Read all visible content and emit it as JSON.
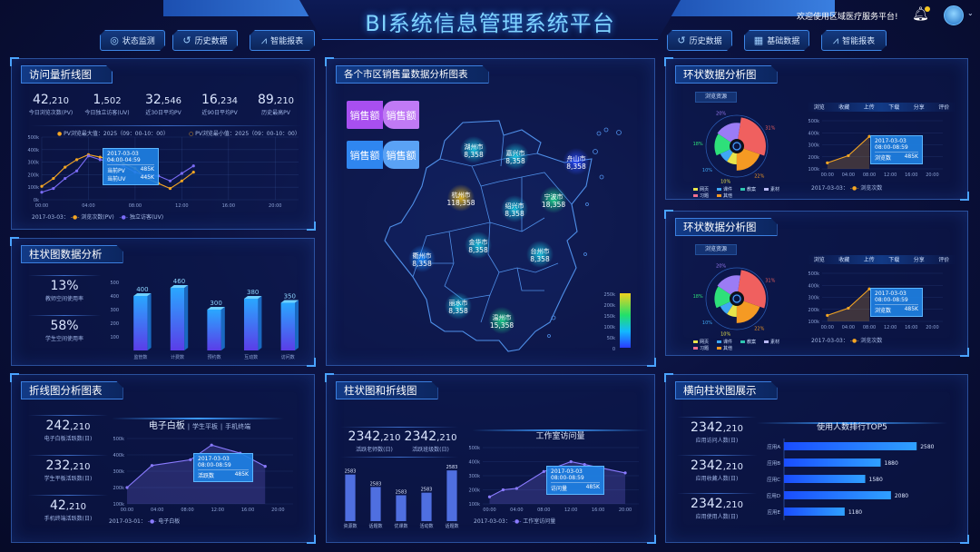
{
  "header": {
    "title": "BI系统信息管理系统平台",
    "welcome": "欢迎使用区域医疗服务平台!",
    "nav_left": [
      {
        "label": "状态监测",
        "icon": "radar-icon"
      },
      {
        "label": "历史数据",
        "icon": "history-icon"
      },
      {
        "label": "智能报表",
        "icon": "report-chart-icon"
      }
    ],
    "nav_right": [
      {
        "label": "历史数据",
        "icon": "history-icon"
      },
      {
        "label": "基础数据",
        "icon": "grid-icon"
      },
      {
        "label": "智能报表",
        "icon": "report-chart-icon"
      }
    ]
  },
  "colors": {
    "accent": "#4aa3ff",
    "title": "#7fd2ff",
    "pv": "#f5a623",
    "uv": "#7b6cf6",
    "bar_top": "#29a7ff",
    "bar_bottom": "#5b3de8",
    "hbar": "#1e6cff"
  },
  "visits": {
    "title": "访问量折线图",
    "stats": [
      {
        "value": "42",
        "small": ",210",
        "label": "今日浏览次数(PV)"
      },
      {
        "value": "1",
        "small": ",502",
        "label": "今日独立访客(UV)"
      },
      {
        "value": "32",
        "small": ",546",
        "label": "近30日平均PV"
      },
      {
        "value": "16",
        "small": ",234",
        "label": "近90日平均PV"
      },
      {
        "value": "89",
        "small": ",210",
        "label": "历史最高PV"
      }
    ],
    "legend_max": "PV浏览最大值：2025（09：00-10：00）",
    "legend_min": "PV浏览最小值：2025（09：00-10：00）",
    "tooltip": {
      "header": "2017-03-03 04:00-04:59",
      "rows": [
        {
          "k": "当前PV",
          "v": "485K"
        },
        {
          "k": "当前UV",
          "v": "445K"
        }
      ]
    },
    "footer_date": "2017-03-03：",
    "footer_series": [
      "浏览次数(PV)",
      "独立访客(UV)"
    ]
  },
  "barpanel": {
    "title": "柱状图数据分析",
    "stats": [
      {
        "value": "13%",
        "label": "教师空间使用率"
      },
      {
        "value": "58%",
        "label": "学生空间使用率"
      }
    ]
  },
  "map": {
    "title": "各个市区销售量数据分析图表",
    "buttons": [
      [
        "销售额",
        "销售额"
      ],
      [
        "销售额",
        "销售额"
      ]
    ],
    "cities": [
      {
        "name": "湖州市",
        "value": "8,358",
        "color": "#19c6e0"
      },
      {
        "name": "嘉兴市",
        "value": "8,358",
        "color": "#19c6e0"
      },
      {
        "name": "舟山市",
        "value": "8,358",
        "color": "#2a4cff"
      },
      {
        "name": "杭州市",
        "value": "118,358",
        "color": "#e6b81e"
      },
      {
        "name": "绍兴市",
        "value": "8,358",
        "color": "#19c6e0"
      },
      {
        "name": "宁波市",
        "value": "18,358",
        "color": "#1ed28a"
      },
      {
        "name": "金华市",
        "value": "8,358",
        "color": "#19c6e0"
      },
      {
        "name": "台州市",
        "value": "8,358",
        "color": "#19c6e0"
      },
      {
        "name": "衢州市",
        "value": "8,358",
        "color": "#1a8cff"
      },
      {
        "name": "丽水市",
        "value": "8,358",
        "color": "#19c6e0"
      },
      {
        "name": "温州市",
        "value": "15,358",
        "color": "#1ed28a"
      }
    ],
    "scale_labels": [
      "250k",
      "200k",
      "150k",
      "100k",
      "50k",
      "0"
    ]
  },
  "ring1": {
    "title": "环状数据分析图",
    "tag": "浏览资源",
    "tabs": [
      "浏览",
      "收藏",
      "上传",
      "下载",
      "分享",
      "评价"
    ],
    "tooltip": {
      "header": "2017-03-03 08:00-08:59",
      "rows": [
        {
          "k": "浏览数",
          "v": "485K"
        }
      ]
    },
    "footer_date": "2017-03-03：",
    "footer_series": "浏览次数"
  },
  "ring2": {
    "title": "环状数据分析图",
    "tag": "浏览资源",
    "tabs": [
      "浏览",
      "收藏",
      "上传",
      "下载",
      "分享",
      "评价"
    ],
    "tooltip": {
      "header": "2017-03-03 08:00-08:59",
      "rows": [
        {
          "k": "浏览数",
          "v": "485K"
        }
      ]
    },
    "footer_date": "2017-03-03：",
    "footer_series": "浏览次数"
  },
  "linepanel": {
    "title": "折线图分析图表",
    "stats": [
      {
        "value": "242",
        "small": ",210",
        "label": "电子白板活跃数(日)"
      },
      {
        "value": "232",
        "small": ",210",
        "label": "学生平板活跃数(日)"
      },
      {
        "value": "42",
        "small": ",210",
        "label": "手机终端活跃数(日)"
      }
    ],
    "tabs": [
      "电子白板",
      "学生平板",
      "手机终端"
    ],
    "tooltip": {
      "header": "2017-03-03 08:00-08:59",
      "rows": [
        {
          "k": "活跃数",
          "v": "485K"
        }
      ]
    },
    "footer_date": "2017-03-01：",
    "footer_series": "电子白板"
  },
  "combo": {
    "title": "柱状图和折线图",
    "stats": [
      {
        "value": "2342",
        "small": ",210",
        "label": "活跃老师数(日)"
      },
      {
        "value": "2342",
        "small": ",210",
        "label": "活跃班级数(日)"
      }
    ],
    "line_title": "工作室访问量",
    "tooltip": {
      "header": "2017-03-03 08:00-08:59",
      "rows": [
        {
          "k": "访问量",
          "v": "485K"
        }
      ]
    },
    "footer_date": "2017-03-03：",
    "footer_series": "工作室访问量"
  },
  "hbarpanel": {
    "title": "横向柱状图展示",
    "stats": [
      {
        "value": "2342",
        "small": ",210",
        "label": "应用访问人数(日)"
      },
      {
        "value": "2342",
        "small": ",210",
        "label": "应用收藏人数(日)"
      },
      {
        "value": "2342",
        "small": ",210",
        "label": "应用使用人数(日)"
      }
    ]
  },
  "chart_data": [
    {
      "type": "line",
      "x": [
        0,
        1,
        2,
        3,
        4,
        5,
        6,
        7,
        8,
        9,
        10,
        11,
        12,
        13
      ],
      "xlim": [
        0,
        22
      ],
      "xticks": [
        0,
        4,
        8,
        12,
        16,
        20
      ],
      "xtick_labels": [
        "00:00",
        "04:00",
        "08:00",
        "12:00",
        "16:00",
        "20:00"
      ],
      "ylim": [
        0,
        500
      ],
      "ytick_labels": [
        "0k",
        "100k",
        "200k",
        "300k",
        "400k",
        "500k"
      ],
      "grid": true,
      "series": [
        {
          "name": "浏览次数(PV)",
          "color": "#f5a623",
          "values": [
            107,
            170,
            260,
            320,
            360,
            340,
            320,
            290,
            250,
            170,
            130,
            90,
            150,
            220
          ]
        },
        {
          "name": "独立访客(UV)",
          "color": "#7b6cf6",
          "values": [
            60,
            90,
            170,
            230,
            350,
            320,
            300,
            270,
            220,
            190,
            190,
            150,
            210,
            270
          ]
        }
      ]
    },
    {
      "type": "bar",
      "categories": [
        "监管数",
        "计费数",
        "预约数",
        "互动数",
        "访问数"
      ],
      "values": [
        400,
        460,
        300,
        380,
        350
      ],
      "ylim": [
        0,
        500
      ],
      "ytick_labels": [
        "100",
        "200",
        "300",
        "400",
        "500"
      ]
    },
    {
      "type": "pie",
      "variant": "rose",
      "label": "浏览资源",
      "slices": [
        {
          "name": "习题",
          "value": 31,
          "color": "#f0605f"
        },
        {
          "name": "其他",
          "value": 22,
          "color": "#f59a23"
        },
        {
          "name": "网页",
          "value": 10,
          "color": "#e8e54a"
        },
        {
          "name": "课件",
          "value": 10,
          "color": "#3fa8f5"
        },
        {
          "name": "教案",
          "value": 18,
          "color": "#2ee07a"
        },
        {
          "name": "素材",
          "value": 20,
          "color": "#9b7cf5"
        }
      ],
      "pct_labels": [
        "31%",
        "22%",
        "10%",
        "10%",
        "18%",
        "20%"
      ],
      "legend": [
        "网页",
        "课件",
        "教案",
        "素材",
        "习题",
        "其他"
      ]
    },
    {
      "type": "area",
      "x": [
        0,
        4,
        8
      ],
      "xlim": [
        -1,
        22
      ],
      "xticks": [
        0,
        4,
        8,
        12,
        16,
        20
      ],
      "xtick_labels": [
        "00:00",
        "04:00",
        "08:00",
        "12:00",
        "16:00",
        "20:00"
      ],
      "ylim": [
        100,
        500
      ],
      "ytick_labels": [
        "100k",
        "200k",
        "300k",
        "400k",
        "500k"
      ],
      "series": [
        {
          "name": "浏览次数",
          "color": "#f5a623",
          "values": [
            150,
            210,
            370
          ]
        }
      ]
    },
    {
      "type": "pie",
      "variant": "rose",
      "label": "浏览资源",
      "slices": [
        {
          "name": "习题",
          "value": 31,
          "color": "#f0605f"
        },
        {
          "name": "其他",
          "value": 22,
          "color": "#f59a23"
        },
        {
          "name": "网页",
          "value": 10,
          "color": "#e8e54a"
        },
        {
          "name": "课件",
          "value": 10,
          "color": "#3fa8f5"
        },
        {
          "name": "教案",
          "value": 18,
          "color": "#2ee07a"
        },
        {
          "name": "素材",
          "value": 20,
          "color": "#9b7cf5"
        }
      ],
      "pct_labels": [
        "31%",
        "22%",
        "10%",
        "10%",
        "18%",
        "20%"
      ],
      "legend": [
        "网页",
        "课件",
        "教案",
        "素材",
        "习题",
        "其他"
      ]
    },
    {
      "type": "area",
      "x": [
        0,
        4,
        8
      ],
      "xlim": [
        -1,
        22
      ],
      "xticks": [
        0,
        4,
        8,
        12,
        16,
        20
      ],
      "xtick_labels": [
        "00:00",
        "04:00",
        "08:00",
        "12:00",
        "16:00",
        "20:00"
      ],
      "ylim": [
        100,
        500
      ],
      "ytick_labels": [
        "100k",
        "200k",
        "300k",
        "400k",
        "500k"
      ],
      "series": [
        {
          "name": "浏览次数",
          "color": "#f5a623",
          "values": [
            150,
            210,
            370
          ]
        }
      ]
    },
    {
      "type": "area",
      "x": [
        0,
        3.3,
        8.4,
        11.2,
        15,
        18.3
      ],
      "xlim": [
        0,
        22
      ],
      "xticks": [
        0,
        4,
        8,
        12,
        16,
        20
      ],
      "xtick_labels": [
        "00:00",
        "04:00",
        "08:00",
        "12:00",
        "16:00",
        "20:00"
      ],
      "ylim": [
        100,
        500
      ],
      "ytick_labels": [
        "100k",
        "200k",
        "300k",
        "400k",
        "500k"
      ],
      "series": [
        {
          "name": "电子白板",
          "color": "#8a7bff",
          "values": [
            200,
            335,
            370,
            460,
            410,
            330
          ]
        }
      ]
    },
    {
      "type": "bar",
      "categories": [
        "资源数",
        "话题数",
        "优课数",
        "活动数",
        "话题数"
      ],
      "labels": [
        "2583",
        "2583",
        "2583",
        "2583",
        "2583"
      ],
      "levels": [
        0.9,
        0.66,
        0.5,
        0.55,
        0.98
      ]
    },
    {
      "type": "area",
      "x": [
        0,
        2,
        4,
        8,
        12,
        14,
        20
      ],
      "xlim": [
        -1,
        22
      ],
      "xticks": [
        0,
        4,
        8,
        12,
        16,
        20
      ],
      "xtick_labels": [
        "00:00",
        "04:00",
        "08:00",
        "12:00",
        "16:00",
        "20:00"
      ],
      "ylim": [
        100,
        500
      ],
      "ytick_labels": [
        "100k",
        "200k",
        "300k",
        "400k",
        "500k"
      ],
      "series": [
        {
          "name": "工作室访问量",
          "color": "#8a7bff",
          "values": [
            150,
            200,
            210,
            330,
            400,
            380,
            320
          ]
        }
      ]
    },
    {
      "type": "bar",
      "orientation": "horizontal",
      "title": "使用人数排行TOP5",
      "categories": [
        "应用A",
        "应用B",
        "应用C",
        "应用D",
        "应用E"
      ],
      "values": [
        2580,
        1880,
        1580,
        2080,
        1180
      ],
      "xlim": [
        0,
        3000
      ]
    }
  ]
}
